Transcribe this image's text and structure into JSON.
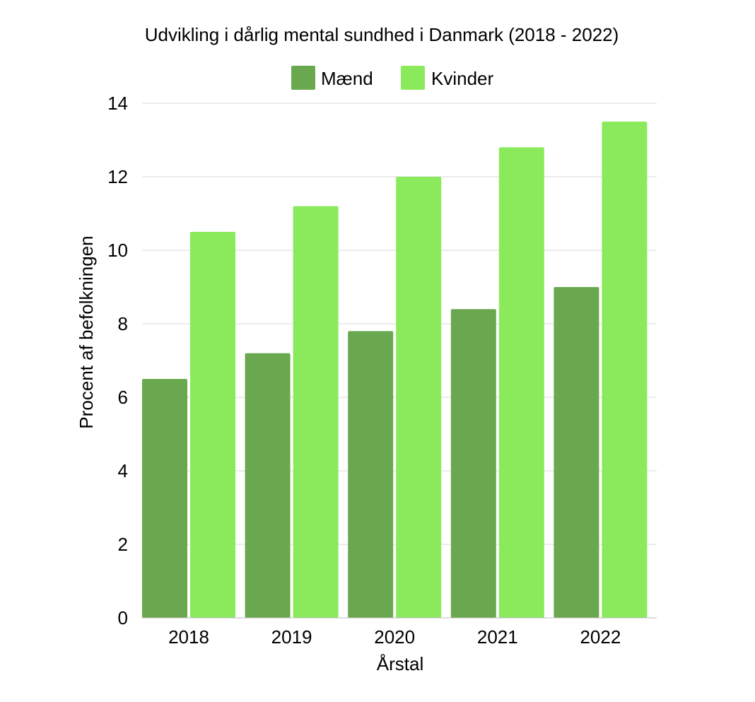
{
  "chart_data": {
    "type": "bar",
    "title": "Udvikling i dårlig mental sundhed i Danmark (2018 - 2022)",
    "xlabel": "Årstal",
    "ylabel": "Procent af befolkningen",
    "categories": [
      "2018",
      "2019",
      "2020",
      "2021",
      "2022"
    ],
    "series": [
      {
        "name": "Mænd",
        "color": "#6aa84f",
        "values": [
          6.5,
          7.2,
          7.8,
          8.4,
          9.0
        ]
      },
      {
        "name": "Kvinder",
        "color": "#8bea5c",
        "values": [
          10.5,
          11.2,
          12.0,
          12.8,
          13.5
        ]
      }
    ],
    "ylim": [
      0,
      14
    ],
    "yticks": [
      "0",
      "2",
      "4",
      "6",
      "8",
      "10",
      "12",
      "14"
    ],
    "grid": true,
    "legend_position": "top"
  }
}
